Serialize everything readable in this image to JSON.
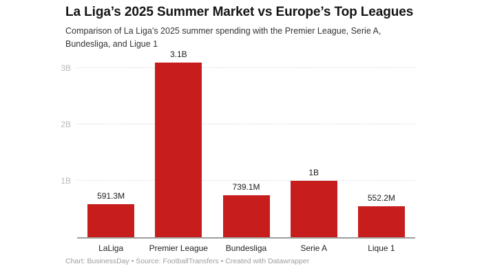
{
  "header": {
    "title": "La Liga’s 2025 Summer Market vs Europe’s Top Leagues",
    "subtitle": "Comparison of La Liga’s 2025 summer spending with the Premier League, Serie A, Bundesliga, and Ligue 1"
  },
  "footer": {
    "text": "Chart: BusinessDay • Source: FootballTransfers • Created with Datawrapper"
  },
  "chart_data": {
    "type": "bar",
    "title": "La Liga’s 2025 Summer Market vs Europe’s Top Leagues",
    "subtitle": "Comparison of La Liga’s 2025 summer spending with the Premier League, Serie A, Bundesliga, and Ligue 1",
    "categories": [
      "LaLiga",
      "Premier League",
      "Bundesliga",
      "Serie A",
      "Lique 1"
    ],
    "values": [
      591.3,
      3100,
      739.1,
      1000,
      552.2
    ],
    "values_unit": "millions",
    "value_labels": [
      "591.3M",
      "3.1B",
      "739.1M",
      "1B",
      "552.2M"
    ],
    "xlabel": "",
    "ylabel": "",
    "yticks": [
      {
        "value": 1000,
        "label": "1B"
      },
      {
        "value": 2000,
        "label": "2B"
      },
      {
        "value": 3000,
        "label": "3B"
      }
    ],
    "ylim": [
      0,
      3320
    ],
    "grid": true,
    "legend_position": "none",
    "bar_color": "#c71e1d"
  }
}
